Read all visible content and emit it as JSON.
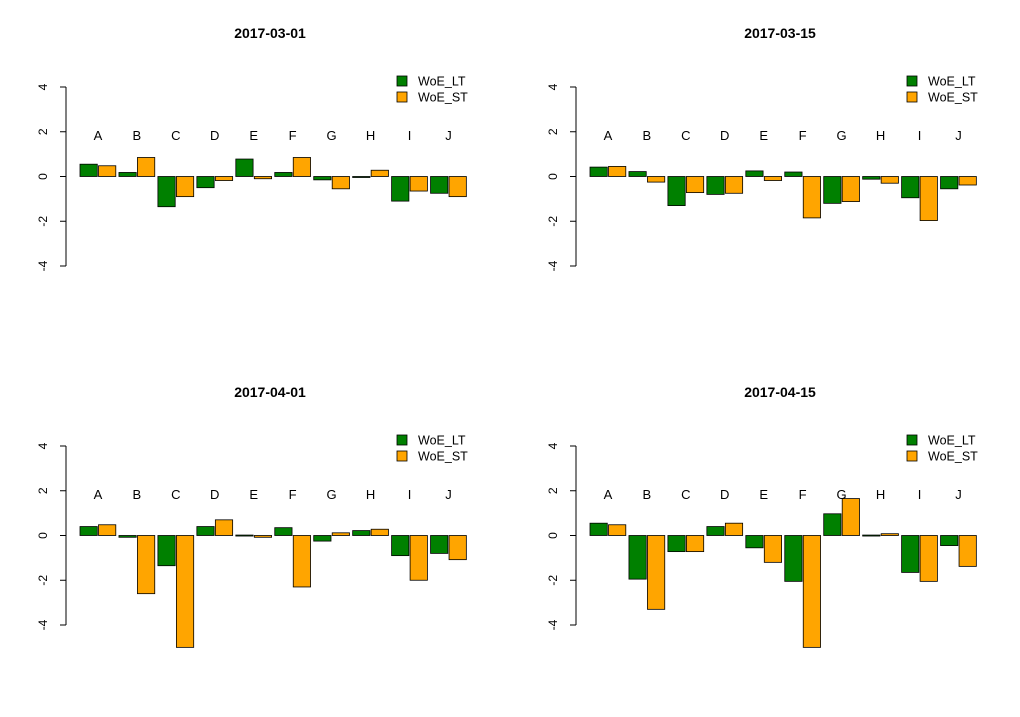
{
  "chart_data": [
    {
      "type": "bar",
      "title": "2017-03-01",
      "categories": [
        "A",
        "B",
        "C",
        "D",
        "E",
        "F",
        "G",
        "H",
        "I",
        "J"
      ],
      "series": [
        {
          "name": "WoE_LT",
          "color": "#008000",
          "values": [
            0.55,
            0.18,
            -1.35,
            -0.5,
            0.78,
            0.18,
            -0.15,
            0.0,
            -1.1,
            -0.75
          ]
        },
        {
          "name": "WoE_ST",
          "color": "#FFA500",
          "values": [
            0.48,
            0.85,
            -0.9,
            -0.18,
            -0.1,
            0.85,
            -0.55,
            0.28,
            -0.65,
            -0.9
          ]
        }
      ],
      "yticks": [
        "-4",
        "-2",
        "0",
        "2",
        "4"
      ],
      "ylim": [
        -4,
        4
      ],
      "legend": "top-right"
    },
    {
      "type": "bar",
      "title": "2017-03-15",
      "categories": [
        "A",
        "B",
        "C",
        "D",
        "E",
        "F",
        "G",
        "H",
        "I",
        "J"
      ],
      "series": [
        {
          "name": "WoE_LT",
          "color": "#008000",
          "values": [
            0.42,
            0.22,
            -1.3,
            -0.8,
            0.25,
            0.2,
            -1.2,
            -0.12,
            -0.95,
            -0.55
          ]
        },
        {
          "name": "WoE_ST",
          "color": "#FFA500",
          "values": [
            0.45,
            -0.25,
            -0.72,
            -0.75,
            -0.18,
            -1.85,
            -1.12,
            -0.3,
            -1.97,
            -0.38
          ]
        }
      ],
      "yticks": [
        "-4",
        "-2",
        "0",
        "2",
        "4"
      ],
      "ylim": [
        -4,
        4
      ],
      "legend": "top-right"
    },
    {
      "type": "bar",
      "title": "2017-04-01",
      "categories": [
        "A",
        "B",
        "C",
        "D",
        "E",
        "F",
        "G",
        "H",
        "I",
        "J"
      ],
      "series": [
        {
          "name": "WoE_LT",
          "color": "#008000",
          "values": [
            0.4,
            -0.08,
            -1.35,
            0.4,
            0.02,
            0.35,
            -0.25,
            0.22,
            -0.9,
            -0.8
          ]
        },
        {
          "name": "WoE_ST",
          "color": "#FFA500",
          "values": [
            0.48,
            -2.6,
            -5.0,
            0.7,
            -0.08,
            -2.3,
            0.12,
            0.28,
            -2.0,
            -1.08
          ]
        }
      ],
      "yticks": [
        "-4",
        "-2",
        "0",
        "2",
        "4"
      ],
      "ylim": [
        -4,
        4
      ],
      "legend": "top-right"
    },
    {
      "type": "bar",
      "title": "2017-04-15",
      "categories": [
        "A",
        "B",
        "C",
        "D",
        "E",
        "F",
        "G",
        "H",
        "I",
        "J"
      ],
      "series": [
        {
          "name": "WoE_LT",
          "color": "#008000",
          "values": [
            0.55,
            -1.95,
            -0.72,
            0.4,
            -0.55,
            -2.05,
            0.97,
            0.02,
            -1.65,
            -0.45
          ]
        },
        {
          "name": "WoE_ST",
          "color": "#FFA500",
          "values": [
            0.48,
            -3.3,
            -0.72,
            0.55,
            -1.2,
            -5.0,
            1.65,
            0.08,
            -2.05,
            -1.38
          ]
        }
      ],
      "yticks": [
        "-4",
        "-2",
        "0",
        "2",
        "4"
      ],
      "ylim": [
        -4,
        4
      ],
      "legend": "top-right"
    }
  ]
}
